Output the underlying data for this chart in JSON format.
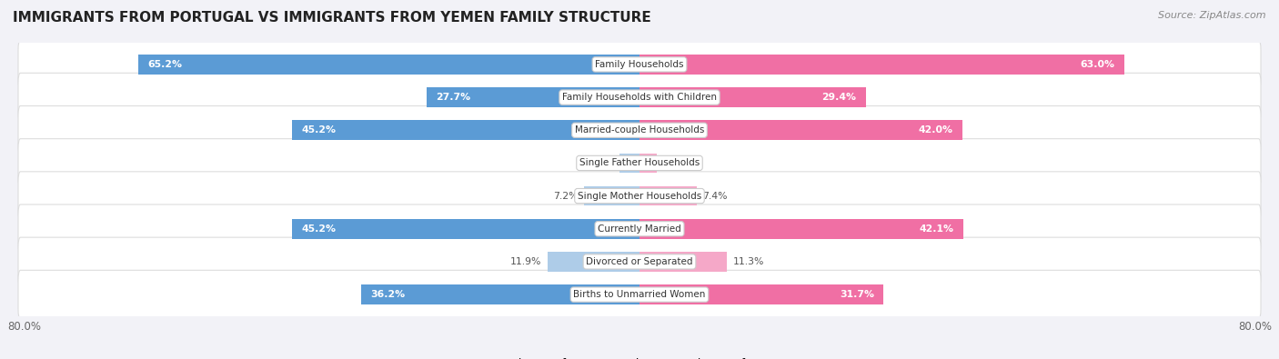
{
  "title": "IMMIGRANTS FROM PORTUGAL VS IMMIGRANTS FROM YEMEN FAMILY STRUCTURE",
  "source": "Source: ZipAtlas.com",
  "categories": [
    "Family Households",
    "Family Households with Children",
    "Married-couple Households",
    "Single Father Households",
    "Single Mother Households",
    "Currently Married",
    "Divorced or Separated",
    "Births to Unmarried Women"
  ],
  "portugal_values": [
    65.2,
    27.7,
    45.2,
    2.6,
    7.2,
    45.2,
    11.9,
    36.2
  ],
  "yemen_values": [
    63.0,
    29.4,
    42.0,
    2.2,
    7.4,
    42.1,
    11.3,
    31.7
  ],
  "max_value": 80.0,
  "portugal_color_large": "#5b9bd5",
  "portugal_color_small": "#aecce8",
  "yemen_color_large": "#f06fa4",
  "yemen_color_small": "#f5a8c8",
  "bg_color": "#f2f2f7",
  "row_bg": "#ffffff",
  "legend_portugal": "Immigrants from Portugal",
  "legend_yemen": "Immigrants from Yemen",
  "value_threshold": 15.0
}
